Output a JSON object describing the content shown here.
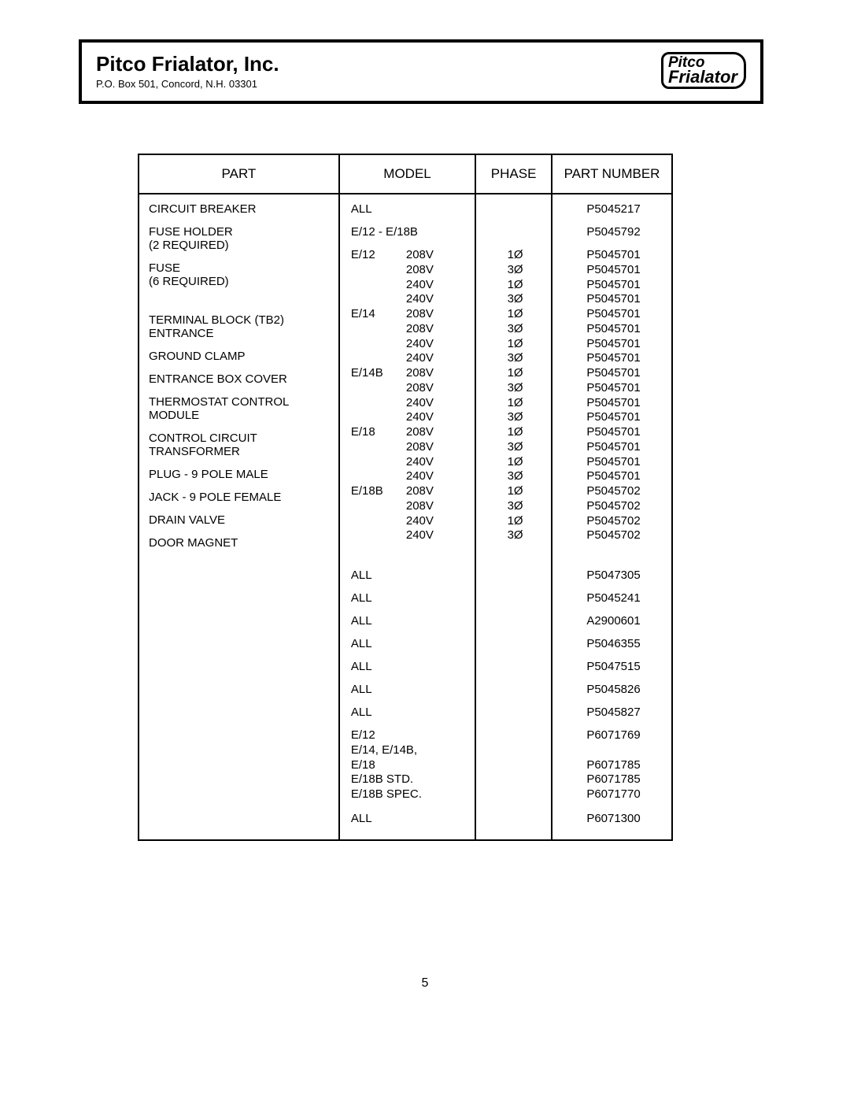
{
  "header": {
    "company_name": "Pitco Frialator, Inc.",
    "address": "P.O. Box 501, Concord, N.H. 03301",
    "logo_line1": "Pitco",
    "logo_line2": "Frialator"
  },
  "columns": {
    "part": "PART",
    "model": "MODEL",
    "phase": "PHASE",
    "part_number": "PART NUMBER"
  },
  "rows": {
    "circuit_breaker": {
      "part": "CIRCUIT BREAKER",
      "model": "ALL",
      "pn": "P5045217"
    },
    "fuse_holder": {
      "part": "FUSE HOLDER\n(2 REQUIRED)",
      "model": "E/12 - E/18B",
      "pn": "P5045792"
    },
    "fuse_label": "FUSE\n(6 REQUIRED)",
    "fuse_groups": [
      {
        "model": "E/12",
        "volts": [
          "208V",
          "208V",
          "240V",
          "240V"
        ],
        "phases": [
          "1Ø",
          "3Ø",
          "1Ø",
          "3Ø"
        ],
        "pns": [
          "P5045701",
          "P5045701",
          "P5045701",
          "P5045701"
        ]
      },
      {
        "model": "E/14",
        "volts": [
          "208V",
          "208V",
          "240V",
          "240V"
        ],
        "phases": [
          "1Ø",
          "3Ø",
          "1Ø",
          "3Ø"
        ],
        "pns": [
          "P5045701",
          "P5045701",
          "P5045701",
          "P5045701"
        ]
      },
      {
        "model": "E/14B",
        "volts": [
          "208V",
          "208V",
          "240V",
          "240V"
        ],
        "phases": [
          "1Ø",
          "3Ø",
          "1Ø",
          "3Ø"
        ],
        "pns": [
          "P5045701",
          "P5045701",
          "P5045701",
          "P5045701"
        ]
      },
      {
        "model": "E/18",
        "volts": [
          "208V",
          "208V",
          "240V",
          "240V"
        ],
        "phases": [
          "1Ø",
          "3Ø",
          "1Ø",
          "3Ø"
        ],
        "pns": [
          "P5045701",
          "P5045701",
          "P5045701",
          "P5045701"
        ]
      },
      {
        "model": "E/18B",
        "volts": [
          "208V",
          "208V",
          "240V",
          "240V"
        ],
        "phases": [
          "1Ø",
          "3Ø",
          "1Ø",
          "3Ø"
        ],
        "pns": [
          "P5045702",
          "P5045702",
          "P5045702",
          "P5045702"
        ]
      }
    ],
    "term_block": {
      "part": "TERMINAL BLOCK (TB2)\nENTRANCE",
      "model": "ALL",
      "pn": "P5047305"
    },
    "ground_clamp": {
      "part": "GROUND CLAMP",
      "model": "ALL",
      "pn": "P5045241"
    },
    "entrance_cover": {
      "part": "ENTRANCE BOX COVER",
      "model": "ALL",
      "pn": "A2900601"
    },
    "thermo": {
      "part": "THERMOSTAT CONTROL\nMODULE",
      "model": "ALL",
      "pn": "P5046355"
    },
    "ctrl_xfmr": {
      "part": "CONTROL CIRCUIT\nTRANSFORMER",
      "model": "ALL",
      "pn": "P5047515"
    },
    "plug9m": {
      "part": "PLUG - 9 POLE MALE",
      "model": "ALL",
      "pn": "P5045826"
    },
    "jack9f": {
      "part": "JACK - 9 POLE FEMALE",
      "model": "ALL",
      "pn": "P5045827"
    },
    "drain_valve": {
      "part": "DRAIN VALVE",
      "models": [
        "E/12",
        "E/14, E/14B,",
        "E/18",
        "E/18B STD.",
        "E/18B SPEC."
      ],
      "pns": [
        "P6071769",
        "",
        "P6071785",
        "P6071785",
        "P6071770"
      ]
    },
    "door_magnet": {
      "part": "DOOR MAGNET",
      "model": "ALL",
      "pn": "P6071300"
    }
  },
  "page_number": "5",
  "style": {
    "border_color": "#000000",
    "background": "#ffffff",
    "body_fontsize": 15,
    "header_fontsize": 17
  }
}
